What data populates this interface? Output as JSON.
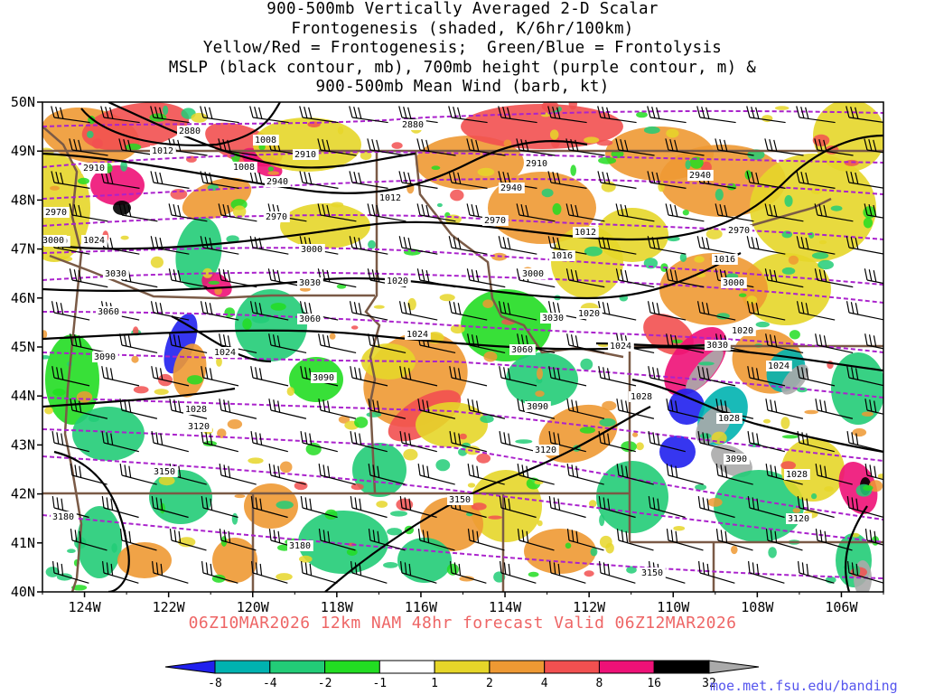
{
  "title_lines": [
    "900-500mb Vertically Averaged 2-D Scalar",
    "Frontogenesis (shaded, K/6hr/100km)",
    "Yellow/Red = Frontogenesis;  Green/Blue = Frontolysis",
    "MSLP (black contour, mb), 700mb height (purple contour, m) &",
    "900-500mb Mean Wind (barb, kt)"
  ],
  "subtitle": "06Z10MAR2026 12km NAM 48hr forecast Valid 06Z12MAR2026",
  "source_url": "moe.met.fsu.edu/banding",
  "map": {
    "lat_labels": [
      "50N",
      "49N",
      "48N",
      "47N",
      "46N",
      "45N",
      "44N",
      "43N",
      "42N",
      "41N",
      "40N"
    ],
    "lon_labels": [
      "124W",
      "122W",
      "120W",
      "118W",
      "116W",
      "114W",
      "112W",
      "110W",
      "108W",
      "106W"
    ],
    "lat_range": [
      40,
      50
    ],
    "lon_range": [
      -125,
      -105
    ],
    "colors": {
      "pressure_contour": "#000000",
      "height_contour": "#aa22cc",
      "borders": "#7a5a46"
    },
    "mslp_labels": [
      "1012",
      "1008",
      "1008",
      "1012",
      "1012",
      "1016",
      "1016",
      "1020",
      "1020",
      "1020",
      "1024",
      "1024",
      "1024",
      "1024",
      "1028",
      "1028",
      "1028",
      "1028",
      "1024"
    ],
    "height_labels": [
      "2880",
      "2880",
      "2910",
      "2910",
      "2910",
      "2940",
      "2940",
      "2940",
      "2970",
      "2970",
      "2970",
      "3000",
      "3000",
      "3000",
      "3000",
      "3030",
      "3030",
      "3030",
      "3030",
      "3060",
      "3060",
      "3060",
      "3090",
      "3090",
      "3090",
      "3090",
      "3120",
      "3120",
      "3120",
      "3150",
      "3150",
      "3150",
      "3180",
      "3180",
      "2970",
      "3000"
    ]
  },
  "colorbar": {
    "labels": [
      "-8",
      "-4",
      "-2",
      "-1",
      "1",
      "2",
      "4",
      "8",
      "16",
      "32"
    ],
    "colors": [
      "#2020ee",
      "#00b2b0",
      "#22cc77",
      "#22dd22",
      "#ffffff",
      "#e6d629",
      "#ee9933",
      "#f25050",
      "#ee1177",
      "#000000",
      "#aaaaaa"
    ]
  }
}
